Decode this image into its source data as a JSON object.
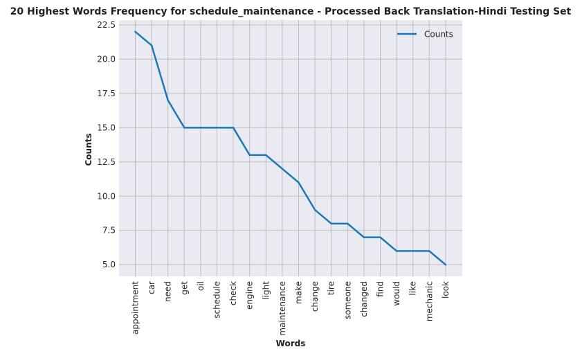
{
  "chart_data": {
    "type": "line",
    "title": "20 Highest Words Frequency for schedule_maintenance - Processed Back Translation-Hindi Testing Set",
    "xlabel": "Words",
    "ylabel": "Counts",
    "categories": [
      "appointment",
      "car",
      "need",
      "get",
      "oil",
      "schedule",
      "check",
      "engine",
      "light",
      "maintenance",
      "make",
      "change",
      "tire",
      "someone",
      "changed",
      "find",
      "would",
      "like",
      "mechanic",
      "look"
    ],
    "series": [
      {
        "name": "Counts",
        "values": [
          22,
          21,
          17,
          15,
          15,
          15,
          15,
          13,
          13,
          12,
          11,
          9,
          8,
          8,
          7,
          7,
          6,
          6,
          6,
          5
        ],
        "color": "#1f77b4"
      }
    ],
    "ylim": [
      4.15,
      22.85
    ],
    "yticks": [
      "5.0",
      "7.5",
      "10.0",
      "12.5",
      "15.0",
      "17.5",
      "20.0",
      "22.5"
    ],
    "grid": true,
    "legend": "top-right",
    "colors": {
      "background": "#eaeaf2",
      "grid": "#bdbdc3"
    }
  }
}
